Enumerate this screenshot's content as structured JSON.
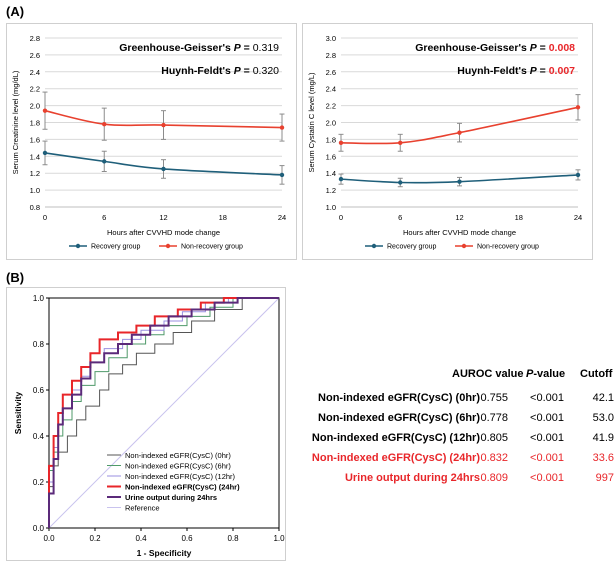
{
  "panel_a_label": "(A)",
  "panel_b_label": "(B)",
  "chart_data": [
    {
      "type": "line",
      "id": "creatinine",
      "x": [
        0,
        6,
        12,
        24
      ],
      "xticks": [
        "0",
        "6",
        "12",
        "18",
        "24"
      ],
      "xlim": [
        0,
        24
      ],
      "ylim": [
        0.8,
        2.8
      ],
      "yticks": [
        "0.8",
        "1.0",
        "1.2",
        "1.4",
        "1.6",
        "1.8",
        "2.0",
        "2.2",
        "2.4",
        "2.6",
        "2.8"
      ],
      "xlabel": "Hours after CVVHD mode change",
      "ylabel": "Serum Creatinine level (mg/dL)",
      "stat1_label": "Greenhouse-Geisser's ",
      "stat1_p": "P",
      "stat1_eq": " = ",
      "stat1_value": "0.319",
      "stat1_color": "#000000",
      "stat2_label": "Huynh-Feldt's ",
      "stat2_p": "P",
      "stat2_eq": " = ",
      "stat2_value": "0.320",
      "stat2_color": "#000000",
      "legend_position": "bottom",
      "series": [
        {
          "name": "Recovery group",
          "color": "#1f5f7a",
          "values": [
            1.44,
            1.34,
            1.25,
            1.18
          ],
          "err": [
            0.14,
            0.12,
            0.11,
            0.11
          ]
        },
        {
          "name": "Non-recovery group",
          "color": "#e8412f",
          "values": [
            1.94,
            1.78,
            1.77,
            1.74
          ],
          "err": [
            0.22,
            0.19,
            0.17,
            0.16
          ]
        }
      ]
    },
    {
      "type": "line",
      "id": "cystatin",
      "x": [
        0,
        6,
        12,
        24
      ],
      "xticks": [
        "0",
        "6",
        "12",
        "18",
        "24"
      ],
      "xlim": [
        0,
        24
      ],
      "ylim": [
        1.0,
        3.0
      ],
      "yticks": [
        "1.0",
        "1.2",
        "1.4",
        "1.6",
        "1.8",
        "2.0",
        "2.2",
        "2.4",
        "2.6",
        "2.8",
        "3.0"
      ],
      "xlabel": "Hours after CVVHD mode change",
      "ylabel": "Serum Cystatin C level (mg/L)",
      "stat1_label": "Greenhouse-Geisser's ",
      "stat1_p": "P",
      "stat1_eq": " = ",
      "stat1_value": "0.008",
      "stat1_color": "#e8262a",
      "stat2_label": "Huynh-Feldt's ",
      "stat2_p": "P",
      "stat2_eq": " = ",
      "stat2_value": "0.007",
      "stat2_color": "#e8262a",
      "legend_position": "bottom",
      "series": [
        {
          "name": "Recovery group",
          "color": "#1f5f7a",
          "values": [
            1.33,
            1.29,
            1.3,
            1.38
          ],
          "err": [
            0.06,
            0.05,
            0.05,
            0.06
          ]
        },
        {
          "name": "Non-recovery group",
          "color": "#e8412f",
          "values": [
            1.76,
            1.76,
            1.88,
            2.18
          ],
          "err": [
            0.1,
            0.1,
            0.11,
            0.15
          ]
        }
      ]
    },
    {
      "type": "line",
      "id": "roc",
      "xlim": [
        0.0,
        1.0
      ],
      "ylim": [
        0.0,
        1.0
      ],
      "xticks": [
        "0.0",
        "0.2",
        "0.4",
        "0.6",
        "0.8",
        "1.0"
      ],
      "yticks": [
        "0.0",
        "0.2",
        "0.4",
        "0.6",
        "0.8",
        "1.0"
      ],
      "xlabel": "1 - Specificity",
      "ylabel": "Sensitivity",
      "legend_position": "bottom-right",
      "series": [
        {
          "name": "Non-indexed eGFR(CysC) (0hr)",
          "color": "#555555",
          "width": 1,
          "points": [
            [
              0,
              0
            ],
            [
              0,
              0.18
            ],
            [
              0.02,
              0.18
            ],
            [
              0.02,
              0.27
            ],
            [
              0.04,
              0.27
            ],
            [
              0.04,
              0.33
            ],
            [
              0.08,
              0.33
            ],
            [
              0.08,
              0.4
            ],
            [
              0.12,
              0.4
            ],
            [
              0.12,
              0.47
            ],
            [
              0.16,
              0.47
            ],
            [
              0.16,
              0.53
            ],
            [
              0.22,
              0.53
            ],
            [
              0.22,
              0.6
            ],
            [
              0.26,
              0.6
            ],
            [
              0.26,
              0.67
            ],
            [
              0.32,
              0.67
            ],
            [
              0.32,
              0.71
            ],
            [
              0.38,
              0.71
            ],
            [
              0.38,
              0.76
            ],
            [
              0.46,
              0.76
            ],
            [
              0.46,
              0.8
            ],
            [
              0.54,
              0.8
            ],
            [
              0.54,
              0.85
            ],
            [
              0.62,
              0.85
            ],
            [
              0.62,
              0.9
            ],
            [
              0.72,
              0.9
            ],
            [
              0.72,
              0.95
            ],
            [
              0.84,
              0.95
            ],
            [
              0.84,
              1.0
            ],
            [
              1,
              1
            ]
          ]
        },
        {
          "name": "Non-indexed eGFR(CysC) (6hr)",
          "color": "#4f9a6a",
          "width": 1,
          "points": [
            [
              0,
              0
            ],
            [
              0,
              0.25
            ],
            [
              0.02,
              0.25
            ],
            [
              0.02,
              0.33
            ],
            [
              0.04,
              0.33
            ],
            [
              0.04,
              0.4
            ],
            [
              0.06,
              0.4
            ],
            [
              0.06,
              0.47
            ],
            [
              0.1,
              0.47
            ],
            [
              0.1,
              0.55
            ],
            [
              0.14,
              0.55
            ],
            [
              0.14,
              0.62
            ],
            [
              0.2,
              0.62
            ],
            [
              0.2,
              0.68
            ],
            [
              0.26,
              0.68
            ],
            [
              0.26,
              0.74
            ],
            [
              0.34,
              0.74
            ],
            [
              0.34,
              0.8
            ],
            [
              0.42,
              0.8
            ],
            [
              0.42,
              0.84
            ],
            [
              0.5,
              0.84
            ],
            [
              0.5,
              0.88
            ],
            [
              0.6,
              0.88
            ],
            [
              0.6,
              0.92
            ],
            [
              0.7,
              0.92
            ],
            [
              0.7,
              0.96
            ],
            [
              0.8,
              0.96
            ],
            [
              0.8,
              1.0
            ],
            [
              1,
              1
            ]
          ]
        },
        {
          "name": "Non-indexed eGFR(CysC) (12hr)",
          "color": "#9a8fe0",
          "width": 1,
          "points": [
            [
              0,
              0
            ],
            [
              0,
              0.2
            ],
            [
              0.02,
              0.2
            ],
            [
              0.02,
              0.35
            ],
            [
              0.04,
              0.35
            ],
            [
              0.04,
              0.45
            ],
            [
              0.06,
              0.45
            ],
            [
              0.06,
              0.52
            ],
            [
              0.1,
              0.52
            ],
            [
              0.1,
              0.6
            ],
            [
              0.14,
              0.6
            ],
            [
              0.14,
              0.66
            ],
            [
              0.18,
              0.66
            ],
            [
              0.18,
              0.72
            ],
            [
              0.24,
              0.72
            ],
            [
              0.24,
              0.78
            ],
            [
              0.32,
              0.78
            ],
            [
              0.32,
              0.82
            ],
            [
              0.4,
              0.82
            ],
            [
              0.4,
              0.86
            ],
            [
              0.5,
              0.86
            ],
            [
              0.5,
              0.9
            ],
            [
              0.58,
              0.9
            ],
            [
              0.58,
              0.94
            ],
            [
              0.68,
              0.94
            ],
            [
              0.68,
              0.98
            ],
            [
              0.78,
              0.98
            ],
            [
              0.78,
              1.0
            ],
            [
              1,
              1
            ]
          ]
        },
        {
          "name": "Non-indexed eGFR(CysC) (24hr)",
          "color": "#e8262a",
          "width": 2,
          "points": [
            [
              0,
              0
            ],
            [
              0,
              0.27
            ],
            [
              0.02,
              0.27
            ],
            [
              0.02,
              0.4
            ],
            [
              0.04,
              0.4
            ],
            [
              0.04,
              0.5
            ],
            [
              0.06,
              0.5
            ],
            [
              0.06,
              0.58
            ],
            [
              0.1,
              0.58
            ],
            [
              0.1,
              0.64
            ],
            [
              0.14,
              0.64
            ],
            [
              0.14,
              0.7
            ],
            [
              0.18,
              0.7
            ],
            [
              0.18,
              0.76
            ],
            [
              0.22,
              0.76
            ],
            [
              0.22,
              0.82
            ],
            [
              0.3,
              0.82
            ],
            [
              0.3,
              0.85
            ],
            [
              0.38,
              0.85
            ],
            [
              0.38,
              0.88
            ],
            [
              0.46,
              0.88
            ],
            [
              0.46,
              0.92
            ],
            [
              0.56,
              0.92
            ],
            [
              0.56,
              0.95
            ],
            [
              0.66,
              0.95
            ],
            [
              0.66,
              0.98
            ],
            [
              0.76,
              0.98
            ],
            [
              0.76,
              1.0
            ],
            [
              1,
              1
            ]
          ]
        },
        {
          "name": "Urine output during 24hrs",
          "color": "#5b2a7a",
          "width": 2,
          "points": [
            [
              0,
              0
            ],
            [
              0,
              0.15
            ],
            [
              0.02,
              0.15
            ],
            [
              0.02,
              0.3
            ],
            [
              0.04,
              0.3
            ],
            [
              0.04,
              0.45
            ],
            [
              0.06,
              0.45
            ],
            [
              0.06,
              0.52
            ],
            [
              0.1,
              0.52
            ],
            [
              0.1,
              0.58
            ],
            [
              0.14,
              0.58
            ],
            [
              0.14,
              0.65
            ],
            [
              0.18,
              0.65
            ],
            [
              0.18,
              0.72
            ],
            [
              0.24,
              0.72
            ],
            [
              0.24,
              0.76
            ],
            [
              0.3,
              0.76
            ],
            [
              0.3,
              0.8
            ],
            [
              0.36,
              0.8
            ],
            [
              0.36,
              0.84
            ],
            [
              0.44,
              0.84
            ],
            [
              0.44,
              0.88
            ],
            [
              0.52,
              0.88
            ],
            [
              0.52,
              0.92
            ],
            [
              0.62,
              0.92
            ],
            [
              0.62,
              0.95
            ],
            [
              0.72,
              0.95
            ],
            [
              0.72,
              0.98
            ],
            [
              0.82,
              0.98
            ],
            [
              0.82,
              1.0
            ],
            [
              1,
              1
            ]
          ]
        },
        {
          "name": "Reference",
          "color": "#c9c3ee",
          "width": 1,
          "points": [
            [
              0,
              0
            ],
            [
              1,
              1
            ]
          ]
        }
      ]
    }
  ],
  "table": {
    "headers": [
      "AUROC value",
      "P",
      "-value",
      "Cutoff"
    ],
    "rows": [
      {
        "name": "Non-indexed eGFR(CysC) (0hr)",
        "auroc": "0.755",
        "p": "<0.001",
        "cutoff": "42.1",
        "highlight": false
      },
      {
        "name": "Non-indexed eGFR(CysC) (6hr)",
        "auroc": "0.778",
        "p": "<0.001",
        "cutoff": "53.0",
        "highlight": false
      },
      {
        "name": "Non-indexed eGFR(CysC) (12hr)",
        "auroc": "0.805",
        "p": "<0.001",
        "cutoff": "41.9",
        "highlight": false
      },
      {
        "name": "Non-indexed eGFR(CysC) (24hr)",
        "auroc": "0.832",
        "p": "<0.001",
        "cutoff": "33.6",
        "highlight": true
      },
      {
        "name": "Urine output during 24hrs",
        "auroc": "0.809",
        "p": "<0.001",
        "cutoff": "997",
        "highlight": true
      }
    ]
  }
}
